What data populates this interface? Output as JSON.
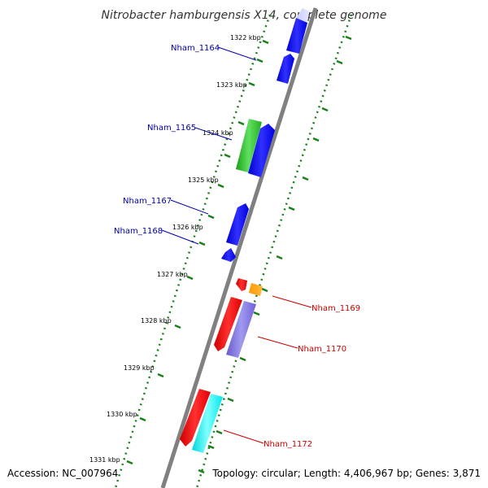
{
  "title": "Nitrobacter hamburgensis X14, complete genome",
  "footer": {
    "accession": "Accession: NC_007964",
    "summary": "Topology: circular; Length: 4,406,967 bp; Genes: 3,871"
  },
  "ticks": [
    "1322 kbp",
    "1323 kbp",
    "1324 kbp",
    "1325 kbp",
    "1326 kbp",
    "1327 kbp",
    "1328 kbp",
    "1329 kbp",
    "1330 kbp",
    "1331 kbp"
  ],
  "gene_labels": [
    {
      "name": "Nham_1164",
      "color": "#0000aa"
    },
    {
      "name": "Nham_1165",
      "color": "#0000aa"
    },
    {
      "name": "Nham_1167",
      "color": "#0000aa"
    },
    {
      "name": "Nham_1168",
      "color": "#0000aa"
    },
    {
      "name": "Nham_1169",
      "color": "#cc0000"
    },
    {
      "name": "Nham_1170",
      "color": "#cc0000"
    },
    {
      "name": "Nham_1172",
      "color": "#cc0000"
    }
  ],
  "colors": {
    "backbone": "#808080",
    "gc_track": "#1a7f1a",
    "forward_gene": "#0000ff",
    "reverse_gene": "#ff0000"
  }
}
